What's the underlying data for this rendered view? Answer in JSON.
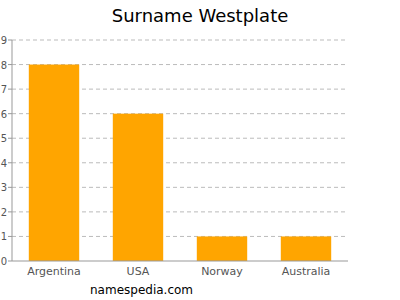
{
  "chart_data": {
    "type": "bar",
    "title": "Surname Westplate",
    "categories": [
      "Argentina",
      "USA",
      "Norway",
      "Australia"
    ],
    "values": [
      8,
      6,
      1,
      1
    ],
    "color": "#ffa500",
    "ylim": [
      0,
      9
    ],
    "yticks": [
      0,
      1,
      2,
      3,
      4,
      5,
      6,
      7,
      8,
      9
    ],
    "grid": true,
    "source": "namespedia.com"
  }
}
